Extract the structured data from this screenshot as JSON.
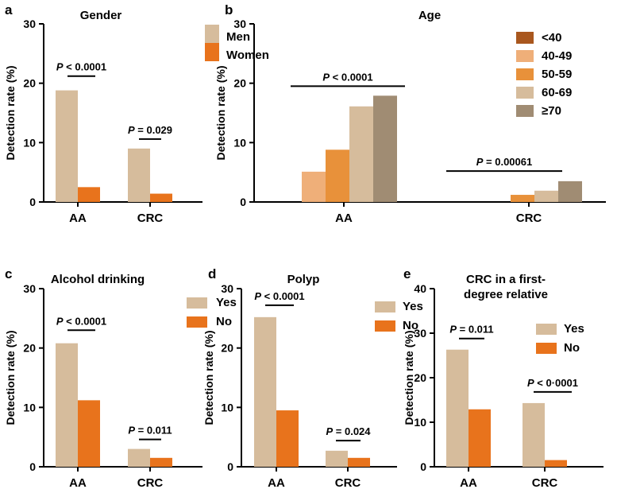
{
  "chart_data": [
    {
      "panel": "a",
      "type": "bar",
      "title": "Gender",
      "ylabel": "Detection rate (%)",
      "ylim": [
        0,
        30
      ],
      "yticks": [
        0,
        10,
        20,
        30
      ],
      "categories": [
        "AA",
        "CRC"
      ],
      "series": [
        {
          "name": "Men",
          "color": "#d6bc9c",
          "values": [
            18.8,
            9.0
          ]
        },
        {
          "name": "Women",
          "color": "#e8731c",
          "values": [
            2.5,
            1.4
          ]
        }
      ],
      "annotations": [
        {
          "prefix": "P",
          "text": " < 0.0001",
          "category": 0,
          "level": 21.2
        },
        {
          "prefix": "P",
          "text": " = 0.029",
          "category": 1,
          "level": 10.6
        }
      ]
    },
    {
      "panel": "b",
      "type": "bar",
      "title": "Age",
      "ylabel": "Detection rate (%)",
      "ylim": [
        0,
        30
      ],
      "yticks": [
        0,
        10,
        20,
        30
      ],
      "categories": [
        "AA",
        "CRC"
      ],
      "series": [
        {
          "name": "<40",
          "color": "#a9571e",
          "values": [
            0,
            0
          ]
        },
        {
          "name": "40-49",
          "color": "#efaf79",
          "values": [
            5.1,
            0
          ]
        },
        {
          "name": "50-59",
          "color": "#e8913a",
          "values": [
            8.8,
            1.2
          ]
        },
        {
          "name": "60-69",
          "color": "#d6bc9c",
          "values": [
            16.1,
            1.9
          ]
        },
        {
          "name": "≥70",
          "color": "#a08c73",
          "values": [
            17.9,
            3.5
          ]
        }
      ],
      "annotations": [
        {
          "prefix": "P",
          "text": " < 0.0001",
          "category": 0,
          "level": 19.5
        },
        {
          "prefix": "P",
          "text": " = 0.00061",
          "category": 1,
          "level": 5.2
        }
      ]
    },
    {
      "panel": "c",
      "type": "bar",
      "title": "Alcohol drinking",
      "ylabel": "Detection rate (%)",
      "ylim": [
        0,
        30
      ],
      "yticks": [
        0,
        10,
        20,
        30
      ],
      "categories": [
        "AA",
        "CRC"
      ],
      "series": [
        {
          "name": "Yes",
          "color": "#d6bc9c",
          "values": [
            20.8,
            3.0
          ]
        },
        {
          "name": "No",
          "color": "#e8731c",
          "values": [
            11.2,
            1.5
          ]
        }
      ],
      "annotations": [
        {
          "prefix": "P",
          "text": " < 0.0001",
          "category": 0,
          "level": 23.0
        },
        {
          "prefix": "P",
          "text": " = 0.011",
          "category": 1,
          "level": 4.6
        }
      ]
    },
    {
      "panel": "d",
      "type": "bar",
      "title": "Polyp",
      "ylabel": "Detection rate (%)",
      "ylim": [
        0,
        30
      ],
      "yticks": [
        0,
        10,
        20,
        30
      ],
      "categories": [
        "AA",
        "CRC"
      ],
      "series": [
        {
          "name": "Yes",
          "color": "#d6bc9c",
          "values": [
            25.2,
            2.7
          ]
        },
        {
          "name": "No",
          "color": "#e8731c",
          "values": [
            9.5,
            1.5
          ]
        }
      ],
      "annotations": [
        {
          "prefix": "P",
          "text": " < 0.0001",
          "category": 0,
          "level": 27.2
        },
        {
          "prefix": "P",
          "text": " = 0.024",
          "category": 1,
          "level": 4.4
        }
      ]
    },
    {
      "panel": "e",
      "type": "bar",
      "title_lines": [
        "CRC in a first-",
        "degree relative"
      ],
      "ylabel": "Detection rate (%)",
      "ylim": [
        0,
        40
      ],
      "yticks": [
        0,
        10,
        20,
        30,
        40
      ],
      "categories": [
        "AA",
        "CRC"
      ],
      "series": [
        {
          "name": "Yes",
          "color": "#d6bc9c",
          "values": [
            26.3,
            14.3
          ]
        },
        {
          "name": "No",
          "color": "#e8731c",
          "values": [
            12.9,
            1.5
          ]
        }
      ],
      "annotations": [
        {
          "prefix": "P",
          "text": " = 0.011",
          "category": 0,
          "level": 28.8
        },
        {
          "prefix": "P",
          "text": " < 0·0001",
          "category": 1,
          "level": 16.8
        }
      ]
    }
  ]
}
